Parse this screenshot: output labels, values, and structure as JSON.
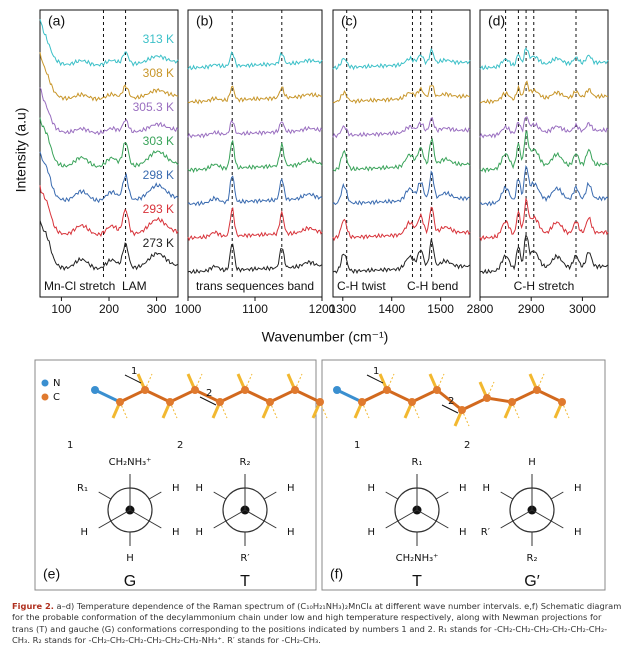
{
  "figure": {
    "y_label": "Intensity (a.u)",
    "x_label": "Wavenumber (cm⁻¹)",
    "series": [
      {
        "name": "273 K",
        "color": "#222222"
      },
      {
        "name": "293 K",
        "color": "#d8333a"
      },
      {
        "name": "298 K",
        "color": "#3a6bb0"
      },
      {
        "name": "303 K",
        "color": "#3aa35a"
      },
      {
        "name": "305.3 K",
        "color": "#9a6fc0"
      },
      {
        "name": "308 K",
        "color": "#c8962a"
      },
      {
        "name": "313 K",
        "color": "#3cc0c8"
      }
    ],
    "panels": [
      {
        "letter": "(a)",
        "xlim": [
          55,
          345
        ],
        "xticks": [
          100,
          200,
          300
        ],
        "annotations": [
          "Mn-Cl stretch",
          "LAM"
        ]
      },
      {
        "letter": "(b)",
        "xlim": [
          1000,
          1200
        ],
        "xticks": [
          1000,
          1100,
          1200
        ],
        "annotations": [
          "trans sequences band"
        ]
      },
      {
        "letter": "(c)",
        "xlim": [
          1280,
          1560
        ],
        "xticks": [
          1300,
          1400,
          1500
        ],
        "annotations": [
          "C-H twist",
          "C-H bend"
        ]
      },
      {
        "letter": "(d)",
        "xlim": [
          2800,
          3050
        ],
        "xticks": [
          2800,
          2900,
          3000
        ],
        "annotations": [
          "C-H stretch"
        ]
      }
    ]
  },
  "schematic": {
    "legend": [
      "N",
      "C"
    ],
    "panels": [
      {
        "letter": "(e)",
        "positions": [
          "1",
          "2"
        ],
        "chain_labels": [
          "1",
          "2"
        ],
        "projections": [
          {
            "name": "G",
            "top": "CH₂NH₃⁺",
            "ul": "R₁",
            "ur": "H",
            "ll": "H",
            "lr": "H",
            "bottom": "H"
          },
          {
            "name": "T",
            "top": "R₂",
            "ul": "H",
            "ur": "H",
            "ll": "H",
            "lr": "H",
            "bottom": "R′"
          }
        ]
      },
      {
        "letter": "(f)",
        "positions": [
          "1",
          "2"
        ],
        "chain_labels": [
          "1",
          "2"
        ],
        "projections": [
          {
            "name": "T",
            "top": "R₁",
            "ul": "H",
            "ur": "H",
            "ll": "H",
            "lr": "H",
            "bottom": "CH₂NH₃⁺"
          },
          {
            "name": "G′",
            "top": "H",
            "ul": "H",
            "ur": "H",
            "ll": "R′",
            "lr": "H",
            "bottom": "R₂"
          }
        ]
      }
    ]
  },
  "caption": {
    "label": "Figure 2.",
    "text": "a–d) Temperature dependence of the Raman spectrum of (C₁₀H₂₁NH₃)₂MnCl₄ at different wave number intervals. e,f) Schematic diagram for the probable conformation of the decylammonium chain under low and high temperature respectively, along with Newman projections for trans (T) and gauche (G) conformations corresponding to the positions indicated by numbers 1 and 2. R₁ stands for -CH₂-CH₂-CH₂-CH₂-CH₂-CH₂-CH₃. R₂ stands for -CH₂-CH₂-CH₂-CH₂-CH₂-CH₂-NH₃⁺. R′ stands for -CH₂-CH₃."
  }
}
